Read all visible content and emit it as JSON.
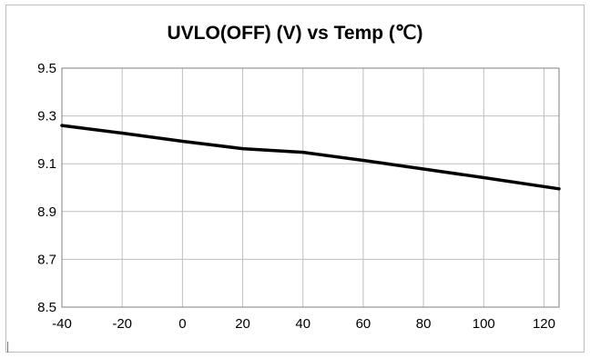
{
  "chart_data": {
    "type": "line",
    "title": "UVLO(OFF) (V)  vs Temp (℃)",
    "xlabel": "",
    "ylabel": "",
    "xlim": [
      -40,
      125
    ],
    "ylim": [
      8.5,
      9.5
    ],
    "xticks": [
      -40,
      -20,
      0,
      20,
      40,
      60,
      80,
      100,
      120
    ],
    "yticks": [
      8.5,
      8.7,
      8.9,
      9.1,
      9.3,
      9.5
    ],
    "xtick_labels": [
      "-40",
      "-20",
      "0",
      "20",
      "40",
      "60",
      "80",
      "100",
      "120"
    ],
    "ytick_labels": [
      "8.5",
      "8.7",
      "8.9",
      "9.1",
      "9.3",
      "9.5"
    ],
    "grid": true,
    "legend": "none",
    "series": [
      {
        "color": "#000000",
        "x": [
          -40,
          -20,
          0,
          20,
          40,
          60,
          80,
          100,
          125
        ],
        "y": [
          9.26,
          9.228,
          9.194,
          9.163,
          9.148,
          9.114,
          9.078,
          9.042,
          8.995
        ]
      }
    ]
  }
}
